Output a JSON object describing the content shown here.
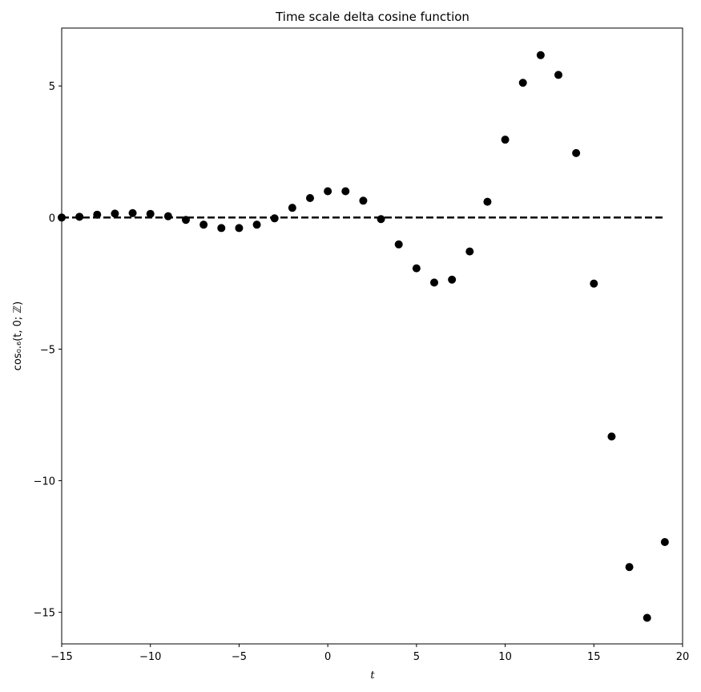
{
  "chart_data": {
    "type": "scatter",
    "title": "Time scale delta cosine function",
    "xlabel": "t",
    "ylabel": "cos₀.₆(t, 0; ℤ)",
    "xlim": [
      -15,
      20
    ],
    "ylim": [
      -16.2,
      7.2
    ],
    "xticks": [
      -15,
      -10,
      -5,
      0,
      5,
      10,
      15,
      20
    ],
    "xtick_labels": [
      "−15",
      "−10",
      "−5",
      "0",
      "5",
      "10",
      "15",
      "20"
    ],
    "yticks": [
      5,
      0,
      -5,
      -10,
      -15
    ],
    "ytick_labels": [
      "5",
      "0",
      "−5",
      "−10",
      "−15"
    ],
    "grid": false,
    "reference_line": {
      "y": 0,
      "x_range": [
        -15,
        19
      ],
      "style": "dashed",
      "color": "#000000"
    },
    "series": [
      {
        "marker": "circle",
        "color": "#000000",
        "points": [
          {
            "x": -15,
            "y": 0.0
          },
          {
            "x": -14,
            "y": 0.03
          },
          {
            "x": -13,
            "y": 0.11
          },
          {
            "x": -12,
            "y": 0.15
          },
          {
            "x": -11,
            "y": 0.17
          },
          {
            "x": -10,
            "y": 0.14
          },
          {
            "x": -9,
            "y": 0.05
          },
          {
            "x": -8,
            "y": -0.09
          },
          {
            "x": -7,
            "y": -0.27
          },
          {
            "x": -6,
            "y": -0.4
          },
          {
            "x": -5,
            "y": -0.4
          },
          {
            "x": -4,
            "y": -0.27
          },
          {
            "x": -3,
            "y": -0.03
          },
          {
            "x": -2,
            "y": 0.37
          },
          {
            "x": -1,
            "y": 0.74
          },
          {
            "x": 0,
            "y": 1.0
          },
          {
            "x": 1,
            "y": 1.0
          },
          {
            "x": 2,
            "y": 0.64
          },
          {
            "x": 3,
            "y": -0.06
          },
          {
            "x": 4,
            "y": -1.02
          },
          {
            "x": 5,
            "y": -1.93
          },
          {
            "x": 6,
            "y": -2.47
          },
          {
            "x": 7,
            "y": -2.36
          },
          {
            "x": 8,
            "y": -1.29
          },
          {
            "x": 9,
            "y": 0.6
          },
          {
            "x": 10,
            "y": 2.96
          },
          {
            "x": 11,
            "y": 5.12
          },
          {
            "x": 12,
            "y": 6.17
          },
          {
            "x": 13,
            "y": 5.42
          },
          {
            "x": 14,
            "y": 2.45
          },
          {
            "x": 15,
            "y": -2.51
          },
          {
            "x": 16,
            "y": -8.32
          },
          {
            "x": 17,
            "y": -13.28
          },
          {
            "x": 18,
            "y": -15.21
          },
          {
            "x": 19,
            "y": -12.33
          }
        ]
      }
    ]
  }
}
